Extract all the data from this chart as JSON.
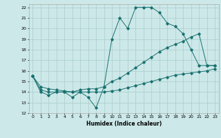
{
  "xlabel": "Humidex (Indice chaleur)",
  "xlim": [
    -0.5,
    23.5
  ],
  "ylim": [
    12,
    22.3
  ],
  "xticks": [
    0,
    1,
    2,
    3,
    4,
    5,
    6,
    7,
    8,
    9,
    10,
    11,
    12,
    13,
    14,
    15,
    16,
    17,
    18,
    19,
    20,
    21,
    22,
    23
  ],
  "yticks": [
    12,
    13,
    14,
    15,
    16,
    17,
    18,
    19,
    20,
    21,
    22
  ],
  "background_color": "#cce8e8",
  "grid_color": "#aacccc",
  "line_color": "#1a7070",
  "curve1_y": [
    15.5,
    14.0,
    13.7,
    14.0,
    14.0,
    13.5,
    14.0,
    13.5,
    12.5,
    14.5,
    19.0,
    21.0,
    20.0,
    22.0,
    22.0,
    22.0,
    21.5,
    20.5,
    20.2,
    19.5,
    18.0,
    16.5,
    16.5,
    16.5
  ],
  "curve2_y": [
    15.5,
    14.2,
    14.0,
    14.0,
    14.0,
    14.0,
    14.2,
    14.3,
    14.3,
    14.5,
    15.0,
    15.3,
    15.8,
    16.3,
    16.8,
    17.3,
    17.8,
    18.2,
    18.5,
    18.8,
    19.2,
    19.5,
    16.5,
    16.5
  ],
  "curve3_y": [
    15.5,
    14.5,
    14.3,
    14.2,
    14.1,
    14.0,
    14.0,
    14.0,
    14.0,
    14.0,
    14.1,
    14.2,
    14.4,
    14.6,
    14.8,
    15.0,
    15.2,
    15.4,
    15.6,
    15.7,
    15.8,
    15.9,
    16.0,
    16.2
  ]
}
